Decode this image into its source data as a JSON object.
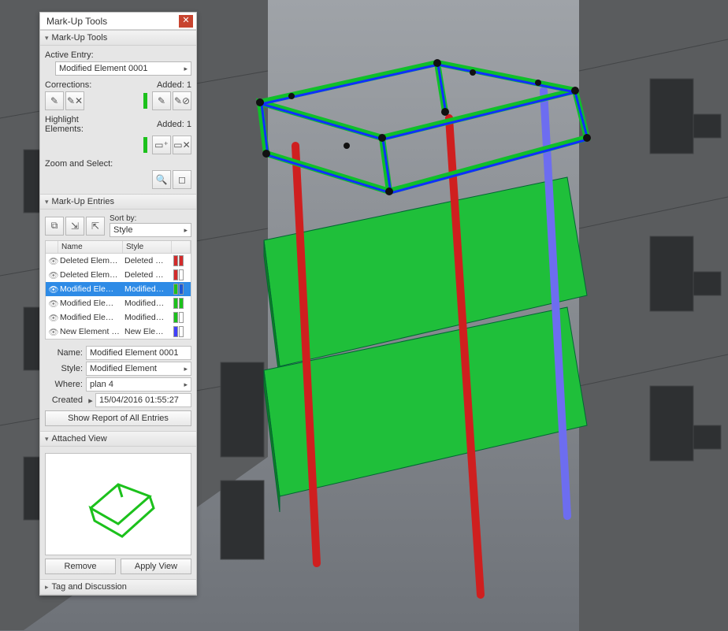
{
  "panel": {
    "title": "Mark-Up Tools"
  },
  "tools": {
    "head": "Mark-Up Tools",
    "active_label": "Active Entry:",
    "active_value": "Modified Element 0001",
    "corrections_label": "Corrections:",
    "corrections_added": "Added: 1",
    "highlight_label": "Highlight\nElements:",
    "highlight_added": "Added: 1",
    "zoom_label": "Zoom and Select:",
    "color_green": "#1cc11c"
  },
  "entries": {
    "head": "Mark-Up Entries",
    "sort_label": "Sort by:",
    "sort_value": "Style",
    "cols": {
      "name": "Name",
      "style": "Style"
    },
    "rows": [
      {
        "name": "Deleted Elem…",
        "style": "Deleted …",
        "c1": "#d32b2b",
        "c2": "#d32b2b",
        "sel": false
      },
      {
        "name": "Deleted Elem…",
        "style": "Deleted …",
        "c1": "#d32b2b",
        "c2": "#ffffff",
        "sel": false
      },
      {
        "name": "Modified Ele…",
        "style": "Modified…",
        "c1": "#1cc11c",
        "c2": "#1a58d6",
        "sel": true
      },
      {
        "name": "Modified Ele…",
        "style": "Modified…",
        "c1": "#1cc11c",
        "c2": "#1cc11c",
        "sel": false
      },
      {
        "name": "Modified Ele…",
        "style": "Modified…",
        "c1": "#1cc11c",
        "c2": "#ffffff",
        "sel": false
      },
      {
        "name": "New Element …",
        "style": "New Ele…",
        "c1": "#4040ff",
        "c2": "#ffffff",
        "sel": false
      }
    ],
    "prop": {
      "name_l": "Name:",
      "name_v": "Modified Element 0001",
      "style_l": "Style:",
      "style_v": "Modified Element",
      "where_l": "Where:",
      "where_v": "plan 4",
      "created_l": "Created",
      "created_v": "15/04/2016 01:55:27"
    },
    "report_btn": "Show Report of All Entries"
  },
  "attached": {
    "head": "Attached View",
    "remove": "Remove",
    "apply": "Apply View",
    "stroke": "#1cc11c"
  },
  "tag": {
    "head": "Tag and Discussion"
  },
  "scene": {
    "bg_top": "#9fa3a8",
    "bg_bot": "#6e7278",
    "building": "#5a5c5e",
    "building_dark": "#434547",
    "window": "#2e3032",
    "slab": "#1fbf3a",
    "slab_edge": "#0f7f25",
    "col_red": "#cf1f1f",
    "col_blue": "#6d6df0",
    "frame_green": "#0fbf2a",
    "frame_blue": "#1030ff",
    "joint": "#111111"
  }
}
